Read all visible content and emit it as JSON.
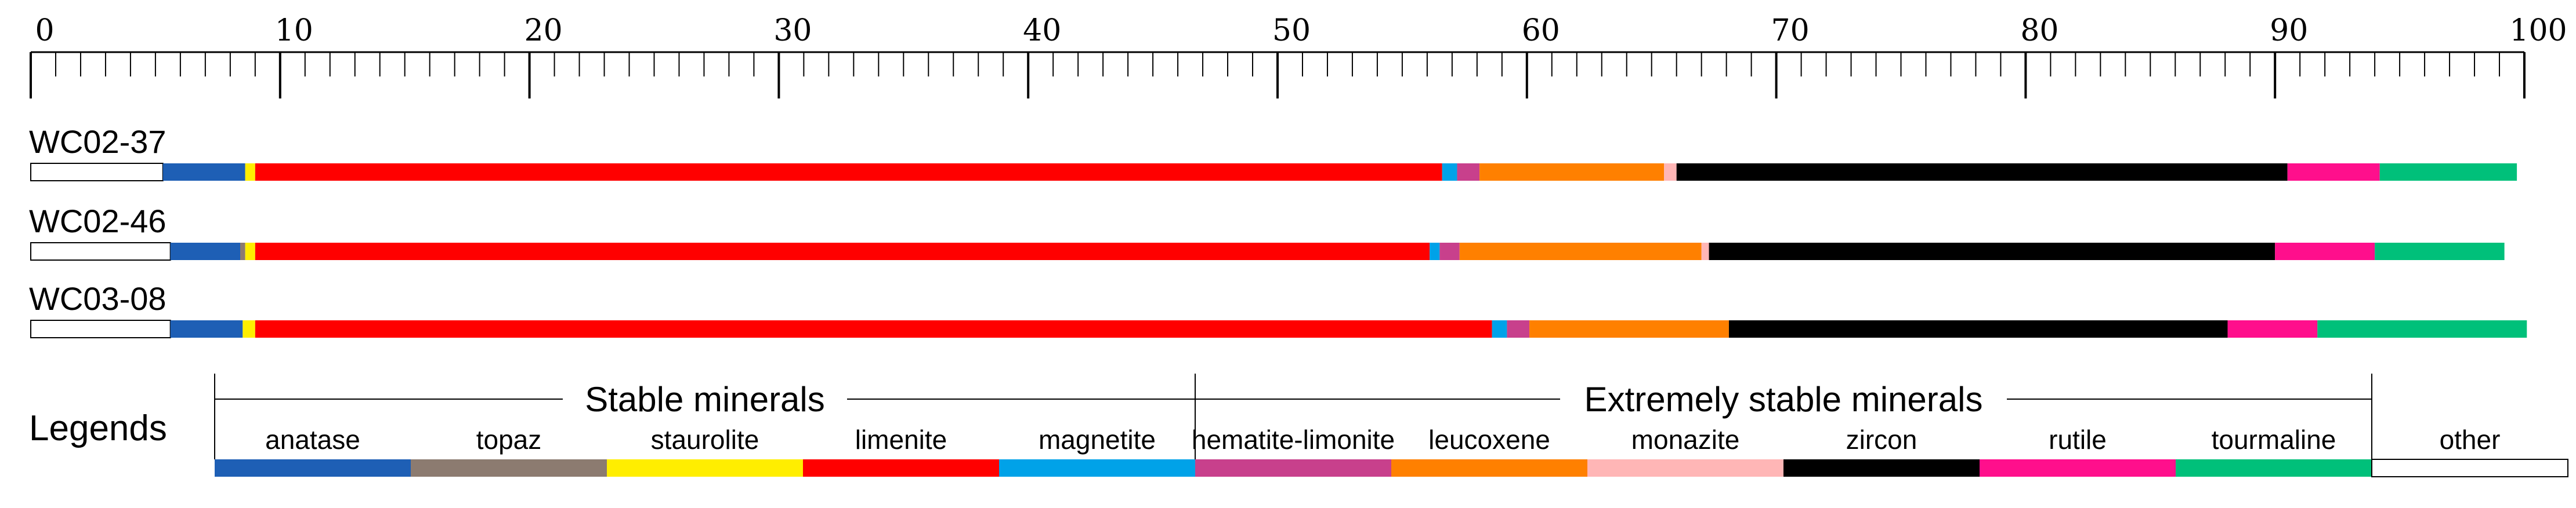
{
  "chart_data": {
    "type": "bar",
    "orientation": "horizontal-stacked",
    "axis": {
      "min": 0,
      "max": 100,
      "major_step": 10,
      "minor_step": 1,
      "tick_labels": [
        "0",
        "10",
        "20",
        "30",
        "40",
        "50",
        "60",
        "70",
        "80",
        "90",
        "100"
      ]
    },
    "minerals": [
      {
        "key": "other",
        "label": "other",
        "color": "#ffffff"
      },
      {
        "key": "anatase",
        "label": "anatase",
        "color": "#1e5fb5"
      },
      {
        "key": "topaz",
        "label": "topaz",
        "color": "#8c7b70"
      },
      {
        "key": "staurolite",
        "label": "staurolite",
        "color": "#ffee00"
      },
      {
        "key": "limenite",
        "label": "limenite",
        "color": "#ff0000"
      },
      {
        "key": "magnetite",
        "label": "magnetite",
        "color": "#00a2e8"
      },
      {
        "key": "hematite-limonite",
        "label": "hematite-limonite",
        "color": "#c8408c"
      },
      {
        "key": "leucoxene",
        "label": "leucoxene",
        "color": "#ff8000"
      },
      {
        "key": "monazite",
        "label": "monazite",
        "color": "#ffb6b6"
      },
      {
        "key": "zircon",
        "label": "zircon",
        "color": "#000000"
      },
      {
        "key": "rutile",
        "label": "rutile",
        "color": "#ff0f8c"
      },
      {
        "key": "tourmaline",
        "label": "tourmaline",
        "color": "#00c07a"
      }
    ],
    "samples": [
      {
        "name": "WC02-37",
        "values": [
          5.3,
          3.3,
          0.0,
          0.4,
          47.6,
          0.6,
          0.9,
          7.4,
          0.5,
          24.5,
          3.7,
          5.5
        ]
      },
      {
        "name": "WC02-46",
        "values": [
          5.6,
          2.8,
          0.2,
          0.4,
          47.1,
          0.4,
          0.8,
          9.7,
          0.3,
          22.7,
          4.0,
          5.2
        ]
      },
      {
        "name": "WC03-08",
        "values": [
          5.6,
          2.9,
          0.0,
          0.5,
          49.6,
          0.6,
          0.9,
          8.0,
          0.0,
          20.0,
          3.6,
          8.4
        ]
      }
    ],
    "legend": {
      "title": "Legends",
      "groups": [
        {
          "title": "Stable minerals",
          "items": [
            "anatase",
            "topaz",
            "staurolite",
            "limenite",
            "magnetite"
          ]
        },
        {
          "title": "Extremely stable minerals",
          "items": [
            "hematite-limonite",
            "leucoxene",
            "monazite",
            "zircon",
            "rutile",
            "tourmaline"
          ]
        }
      ],
      "ungrouped": [
        "other"
      ]
    }
  }
}
